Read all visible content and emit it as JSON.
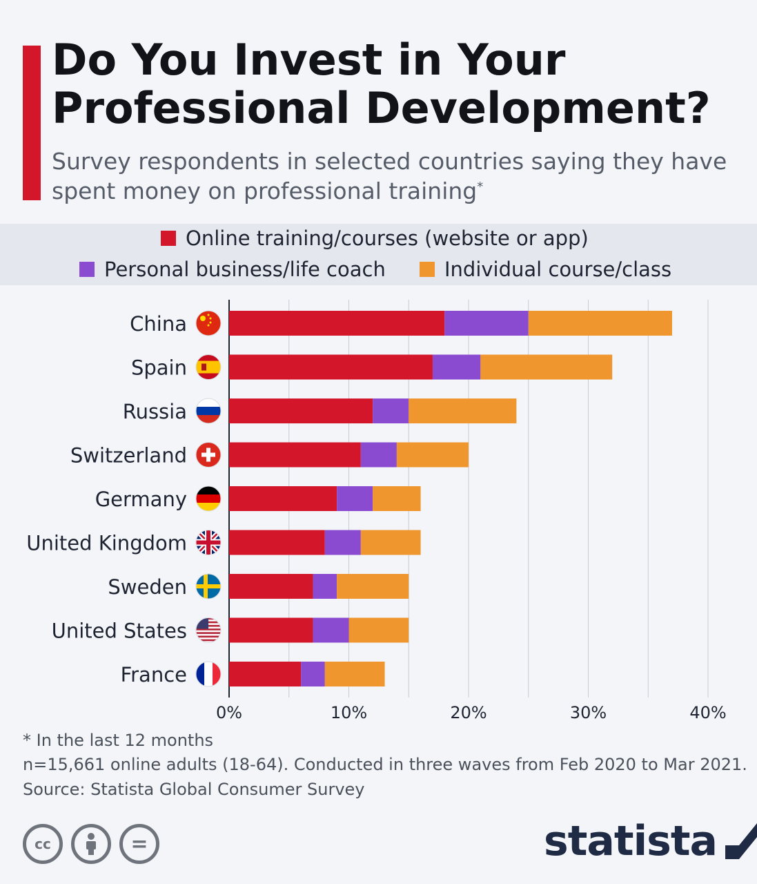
{
  "header": {
    "title": "Do You Invest in Your Professional Development?",
    "subtitle": "Survey respondents in selected countries saying they have spent money on professional training",
    "subtitle_mark": "*"
  },
  "chart_data": {
    "type": "bar",
    "orientation": "horizontal",
    "stacked": true,
    "categories": [
      "China",
      "Spain",
      "Russia",
      "Switzerland",
      "Germany",
      "United Kingdom",
      "Sweden",
      "United States",
      "France"
    ],
    "series": [
      {
        "name": "Online training/courses (website or app)",
        "color": "#d3162a",
        "values": [
          18,
          17,
          12,
          11,
          9,
          8,
          7,
          7,
          6
        ]
      },
      {
        "name": "Personal business/life coach",
        "color": "#8a4bd0",
        "values": [
          7,
          4,
          3,
          3,
          3,
          3,
          2,
          3,
          2
        ]
      },
      {
        "name": "Individual course/class",
        "color": "#f0962e",
        "values": [
          12,
          11,
          9,
          6,
          4,
          5,
          6,
          5,
          5
        ]
      }
    ],
    "x_ticks": [
      "0%",
      "10%",
      "20%",
      "30%",
      "40%"
    ],
    "xlim": [
      0,
      40
    ],
    "grid": true,
    "legend_position": "top"
  },
  "footer": {
    "note": "* In the last 12 months",
    "method": "n=15,661 online adults (18-64). Conducted in three waves from Feb 2020 to Mar 2021.",
    "source": "Source: Statista Global Consumer Survey",
    "cc_symbol": "cc",
    "nd_symbol": "=",
    "brand": "statista"
  },
  "icons": [
    "china-flag-icon",
    "spain-flag-icon",
    "russia-flag-icon",
    "switzerland-flag-icon",
    "germany-flag-icon",
    "uk-flag-icon",
    "sweden-flag-icon",
    "usa-flag-icon",
    "france-flag-icon",
    "smartphone-target-icon",
    "cc-icon",
    "attribution-icon",
    "no-derivatives-icon",
    "statista-logo-icon"
  ]
}
